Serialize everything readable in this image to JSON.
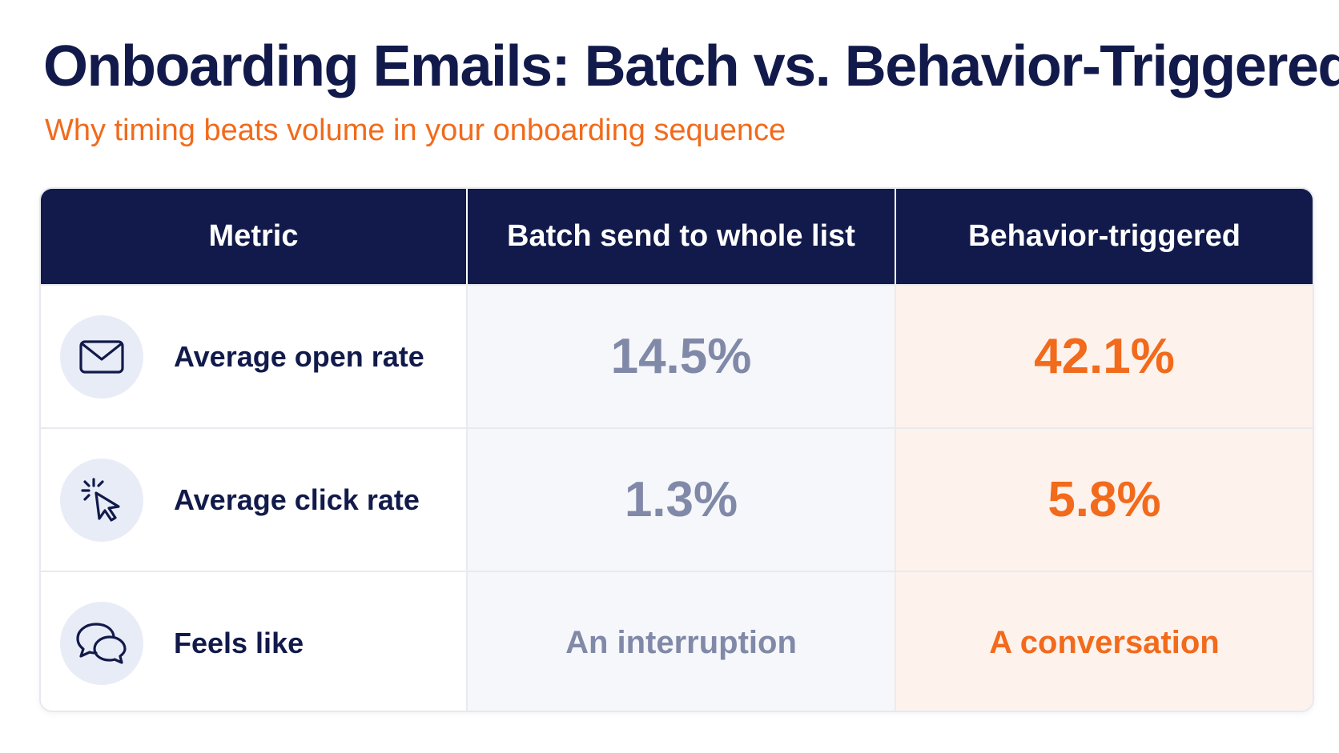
{
  "title": "Onboarding Emails: Batch vs. Behavior-Triggered",
  "subtitle": "Why timing beats volume in your onboarding sequence",
  "colors": {
    "navy": "#111a4a",
    "orange": "#f26a1b",
    "muted": "#8189a8"
  },
  "chart_data": {
    "type": "table",
    "columns": [
      "Metric",
      "Batch send to whole list",
      "Behavior-triggered"
    ],
    "rows": [
      {
        "icon": "envelope-icon",
        "metric": "Average open rate",
        "batch": "14.5%",
        "triggered": "42.1%"
      },
      {
        "icon": "cursor-click-icon",
        "metric": "Average click rate",
        "batch": "1.3%",
        "triggered": "5.8%"
      },
      {
        "icon": "chat-bubbles-icon",
        "metric": "Feels like",
        "batch": "An interruption",
        "triggered": "A conversation"
      }
    ]
  }
}
